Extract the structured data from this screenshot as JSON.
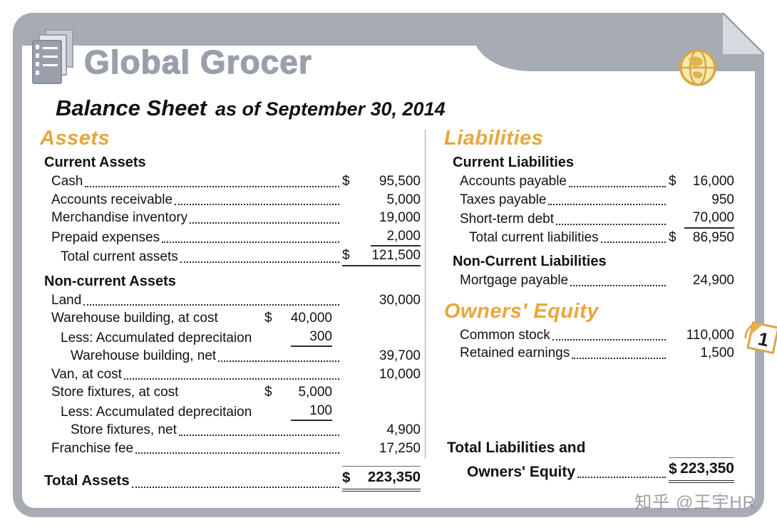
{
  "header": {
    "company": "Global Grocer",
    "title": "Balance Sheet",
    "subtitle": "as of September 30, 2014"
  },
  "colors": {
    "accent_gold": "#E8A63C",
    "frame_gray": "#A6ABB4",
    "company_gray": "#99A0AC"
  },
  "assets": {
    "heading": "Assets",
    "sections": [
      {
        "title": "Current Assets",
        "rows": [
          {
            "label": "Cash",
            "dots": true,
            "cur": "$",
            "val": "95,500"
          },
          {
            "label": "Accounts receivable",
            "dots": true,
            "val": "5,000"
          },
          {
            "label": "Merchandise inventory",
            "dots": true,
            "val": "19,000"
          },
          {
            "label": "Prepaid expenses",
            "dots": true,
            "val": "2,000",
            "valline": "single"
          },
          {
            "label": "Total current assets",
            "indent": 1,
            "dots": true,
            "cur": "$",
            "val": "121,500",
            "valline": "single"
          }
        ]
      },
      {
        "title": "Non-current Assets",
        "rows": [
          {
            "label": "Land",
            "dots": true,
            "val": "30,000"
          },
          {
            "label": "Warehouse building, at cost",
            "midcur": "$",
            "midval": "40,000"
          },
          {
            "label": "Less: Accumulated deprecitaion",
            "indent": 1,
            "midval": "300",
            "midline": "single"
          },
          {
            "label": "Warehouse building, net",
            "indent": 2,
            "dots": true,
            "val": "39,700"
          },
          {
            "label": "Van, at cost",
            "dots": true,
            "val": "10,000"
          },
          {
            "label": "Store fixtures, at cost",
            "midcur": "$",
            "midval": "5,000"
          },
          {
            "label": "Less: Accumulated deprecitaion",
            "indent": 1,
            "midval": "100",
            "midline": "single"
          },
          {
            "label": "Store fixtures, net",
            "indent": 2,
            "dots": true,
            "val": "4,900"
          },
          {
            "label": "Franchise fee",
            "dots": true,
            "val": "17,250"
          }
        ]
      }
    ],
    "total": {
      "label": "Total Assets",
      "bold": true,
      "dots": true,
      "cur": "$",
      "val": "223,350",
      "valline": "double",
      "valtop": true
    }
  },
  "liabilities": {
    "heading": "Liabilities",
    "sections": [
      {
        "title": "Current Liabilities",
        "rows": [
          {
            "label": "Accounts payable",
            "dots": true,
            "cur": "$",
            "val": "16,000"
          },
          {
            "label": "Taxes payable",
            "dots": true,
            "val": "950"
          },
          {
            "label": "Short-term debt",
            "dots": true,
            "val": "70,000",
            "valline": "single"
          },
          {
            "label": "Total current liabilities",
            "indent": 1,
            "dots": true,
            "cur": "$",
            "val": "86,950"
          }
        ]
      },
      {
        "title": "Non-Current Liabilities",
        "rows": [
          {
            "label": "Mortgage payable",
            "dots": true,
            "val": "24,900"
          }
        ]
      }
    ]
  },
  "equity": {
    "heading": "Owners' Equity",
    "rows": [
      {
        "label": "Common stock",
        "dots": true,
        "val": "110,000"
      },
      {
        "label": "Retained earnings",
        "dots": true,
        "val": "1,500"
      }
    ]
  },
  "totals_right": {
    "line1": "Total Liabilities and",
    "line2": "Owners' Equity",
    "cur": "$",
    "val": "223,350"
  },
  "badge": {
    "number": "1"
  },
  "watermark": "知乎 @王宇HR"
}
